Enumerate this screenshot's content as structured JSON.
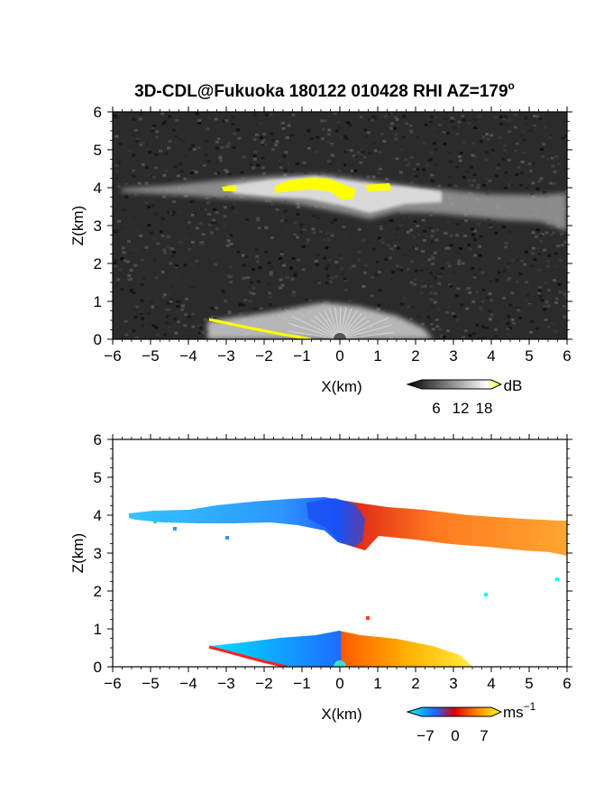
{
  "title": "3D-CDL@Fukuoka 180122 010428 RHI AZ=179",
  "title_suffix": "o",
  "chart_data": [
    {
      "type": "heatmap",
      "name": "reflectivity",
      "xlabel": "X(km)",
      "ylabel": "Z(km)",
      "xlim": [
        -6,
        6
      ],
      "ylim": [
        0,
        6
      ],
      "xticks": [
        -6,
        -5,
        -4,
        -3,
        -2,
        -1,
        0,
        1,
        2,
        3,
        4,
        5,
        6
      ],
      "yticks": [
        0,
        1,
        2,
        3,
        4,
        5,
        6
      ],
      "background": "#2b2b2b",
      "colorbar": {
        "unit": "dB",
        "ticks": [
          "6",
          "12",
          "18"
        ],
        "colors": [
          "#000000",
          "#ffffff",
          "#ffff00"
        ]
      },
      "features": [
        {
          "label": "cloud layer",
          "x_range": [
            -5.8,
            6
          ],
          "z_range": [
            2.9,
            4.3
          ]
        },
        {
          "label": "strong echo (>18 dB)",
          "x_range": [
            -3.1,
            1.2
          ],
          "z_range": [
            3.8,
            4.2
          ],
          "color": "#ffff00"
        },
        {
          "label": "near-surface fan",
          "x_range": [
            -3.5,
            1.5
          ],
          "z_range": [
            0,
            0.6
          ]
        }
      ]
    },
    {
      "type": "heatmap",
      "name": "doppler_velocity",
      "xlabel": "X(km)",
      "ylabel": "Z(km)",
      "xlim": [
        -6,
        6
      ],
      "ylim": [
        0,
        6
      ],
      "xticks": [
        -6,
        -5,
        -4,
        -3,
        -2,
        -1,
        0,
        1,
        2,
        3,
        4,
        5,
        6
      ],
      "yticks": [
        0,
        1,
        2,
        3,
        4,
        5,
        6
      ],
      "background": "#ffffff",
      "colorbar": {
        "unit": "ms",
        "unit_exp": "−1",
        "ticks": [
          "−7",
          "0",
          "7"
        ],
        "range": [
          -7,
          7
        ],
        "colors": [
          "#00ffff",
          "#1e64ff",
          "#dc0000",
          "#ff8c00",
          "#ffff00"
        ]
      },
      "features": [
        {
          "label": "upper layer, negative velocity",
          "x_range": [
            -5.8,
            0
          ],
          "z_range": [
            3.1,
            4.4
          ],
          "velocity": -5
        },
        {
          "label": "upper layer, positive velocity",
          "x_range": [
            0,
            6
          ],
          "z_range": [
            2.9,
            4.2
          ],
          "velocity": 5
        },
        {
          "label": "low-level fan, negative",
          "x_range": [
            -3.5,
            0
          ],
          "z_range": [
            0,
            0.75
          ],
          "velocity": -4
        },
        {
          "label": "low-level fan, positive",
          "x_range": [
            0,
            3.8
          ],
          "z_range": [
            0,
            0.8
          ],
          "velocity": 4
        }
      ]
    }
  ]
}
